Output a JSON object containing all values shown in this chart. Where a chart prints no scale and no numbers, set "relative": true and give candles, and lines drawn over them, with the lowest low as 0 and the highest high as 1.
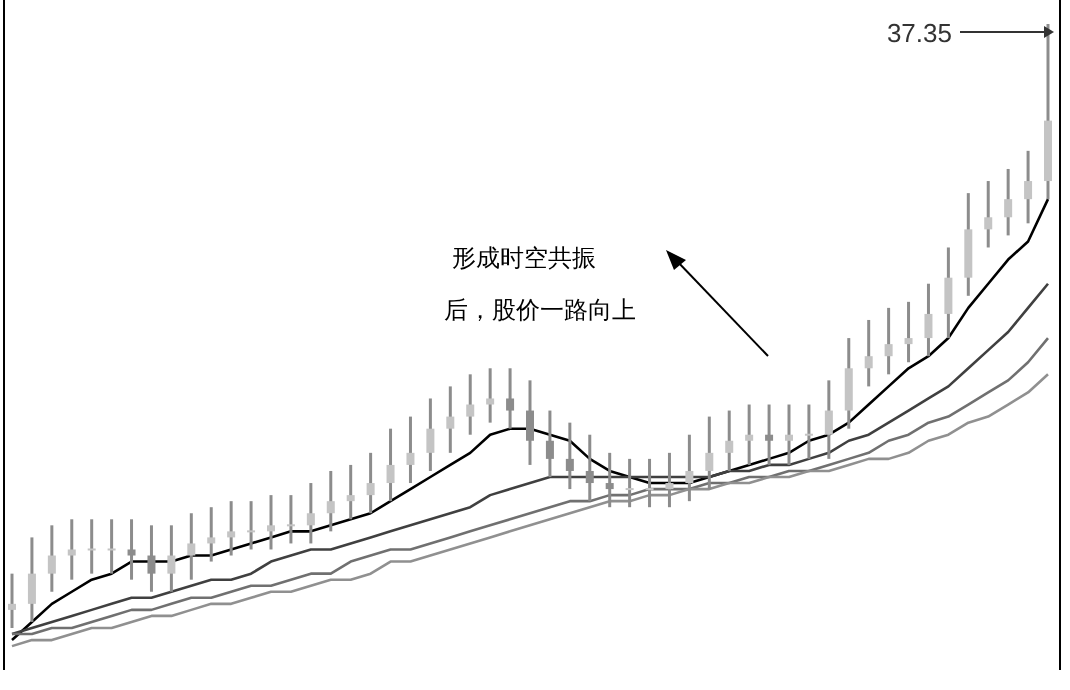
{
  "chart_data": {
    "type": "candlestick",
    "relative": true,
    "categories": [
      null,
      null,
      null,
      null,
      null,
      null,
      null,
      null,
      null,
      null,
      null,
      null,
      null,
      null,
      null,
      null,
      null,
      null,
      null,
      null,
      null,
      null,
      null,
      null,
      null,
      null,
      null,
      null,
      null,
      null,
      null,
      null,
      null,
      null,
      null,
      null,
      null,
      null,
      null,
      null,
      null,
      null,
      null,
      null,
      null,
      null,
      null,
      null,
      null,
      null,
      null,
      null,
      null
    ],
    "color": "#8c8c8c",
    "colors": [
      "#c4c4c4",
      "#c4c4c4",
      "#c4c4c4",
      "#c4c4c4",
      "#c4c4c4",
      "#c4c4c4",
      "#8c8c8c",
      "#8c8c8c",
      "#c4c4c4",
      "#c4c4c4",
      "#c4c4c4",
      "#c4c4c4",
      "#c4c4c4",
      "#c4c4c4",
      "#c4c4c4",
      "#c4c4c4",
      "#c4c4c4",
      "#c4c4c4",
      "#c4c4c4",
      "#c4c4c4",
      "#c4c4c4",
      "#c4c4c4",
      "#c4c4c4",
      "#c4c4c4",
      "#c4c4c4",
      "#8c8c8c",
      "#8c8c8c",
      "#8c8c8c",
      "#8c8c8c",
      "#8c8c8c",
      "#8c8c8c",
      "#c4c4c4",
      "#c4c4c4",
      "#c4c4c4",
      "#c4c4c4",
      "#c4c4c4",
      "#c4c4c4",
      "#c4c4c4",
      "#8c8c8c",
      "#c4c4c4",
      "#c4c4c4",
      "#c4c4c4",
      "#c4c4c4",
      "#c4c4c4",
      "#c4c4c4",
      "#c4c4c4",
      "#c4c4c4",
      "#c4c4c4",
      "#c4c4c4",
      "#c4c4c4",
      "#c4c4c4",
      "#c4c4c4",
      "#c4c4c4"
    ],
    "ohlc": [
      [
        0.03,
        0.09,
        0,
        0.04
      ],
      [
        0.04,
        0.15,
        0.01,
        0.09
      ],
      [
        0.09,
        0.17,
        0.06,
        0.12
      ],
      [
        0.12,
        0.18,
        0.08,
        0.13
      ],
      [
        0.13,
        0.18,
        0.09,
        0.13
      ],
      [
        0.13,
        0.18,
        0.09,
        0.13
      ],
      [
        0.13,
        0.18,
        0.08,
        0.12
      ],
      [
        0.12,
        0.17,
        0.06,
        0.09
      ],
      [
        0.09,
        0.17,
        0.06,
        0.12
      ],
      [
        0.12,
        0.19,
        0.08,
        0.14
      ],
      [
        0.14,
        0.2,
        0.11,
        0.15
      ],
      [
        0.15,
        0.21,
        0.12,
        0.16
      ],
      [
        0.16,
        0.21,
        0.13,
        0.16
      ],
      [
        0.16,
        0.22,
        0.13,
        0.17
      ],
      [
        0.17,
        0.22,
        0.14,
        0.17
      ],
      [
        0.17,
        0.24,
        0.14,
        0.19
      ],
      [
        0.19,
        0.26,
        0.16,
        0.21
      ],
      [
        0.21,
        0.27,
        0.18,
        0.22
      ],
      [
        0.22,
        0.29,
        0.19,
        0.24
      ],
      [
        0.24,
        0.33,
        0.21,
        0.27
      ],
      [
        0.27,
        0.35,
        0.24,
        0.29
      ],
      [
        0.29,
        0.38,
        0.26,
        0.33
      ],
      [
        0.33,
        0.4,
        0.29,
        0.35
      ],
      [
        0.35,
        0.42,
        0.32,
        0.37
      ],
      [
        0.37,
        0.43,
        0.34,
        0.38
      ],
      [
        0.38,
        0.43,
        0.33,
        0.36
      ],
      [
        0.36,
        0.41,
        0.27,
        0.31
      ],
      [
        0.31,
        0.36,
        0.25,
        0.28
      ],
      [
        0.28,
        0.34,
        0.23,
        0.26
      ],
      [
        0.26,
        0.32,
        0.21,
        0.24
      ],
      [
        0.24,
        0.29,
        0.2,
        0.23
      ],
      [
        0.23,
        0.28,
        0.2,
        0.23
      ],
      [
        0.23,
        0.28,
        0.2,
        0.23
      ],
      [
        0.23,
        0.29,
        0.2,
        0.24
      ],
      [
        0.24,
        0.32,
        0.21,
        0.26
      ],
      [
        0.26,
        0.35,
        0.23,
        0.29
      ],
      [
        0.29,
        0.36,
        0.26,
        0.31
      ],
      [
        0.31,
        0.37,
        0.27,
        0.32
      ],
      [
        0.32,
        0.37,
        0.27,
        0.31
      ],
      [
        0.31,
        0.37,
        0.27,
        0.32
      ],
      [
        0.32,
        0.37,
        0.28,
        0.32
      ],
      [
        0.32,
        0.41,
        0.28,
        0.36
      ],
      [
        0.36,
        0.48,
        0.33,
        0.43
      ],
      [
        0.43,
        0.51,
        0.4,
        0.45
      ],
      [
        0.45,
        0.53,
        0.42,
        0.47
      ],
      [
        0.47,
        0.54,
        0.44,
        0.48
      ],
      [
        0.48,
        0.57,
        0.45,
        0.52
      ],
      [
        0.52,
        0.63,
        0.48,
        0.58
      ],
      [
        0.58,
        0.72,
        0.55,
        0.66
      ],
      [
        0.66,
        0.74,
        0.63,
        0.68
      ],
      [
        0.68,
        0.76,
        0.65,
        0.71
      ],
      [
        0.71,
        0.79,
        0.67,
        0.74
      ],
      [
        0.74,
        1.0,
        0.71,
        0.84
      ]
    ],
    "series": [
      {
        "type": "line",
        "color": "#000000",
        "values": [
          -0.02,
          0.01,
          0.04,
          0.06,
          0.08,
          0.09,
          0.11,
          0.11,
          0.11,
          0.12,
          0.12,
          0.13,
          0.14,
          0.15,
          0.16,
          0.16,
          0.17,
          0.18,
          0.19,
          0.21,
          0.23,
          0.25,
          0.27,
          0.29,
          0.32,
          0.33,
          0.33,
          0.32,
          0.31,
          0.28,
          0.26,
          0.25,
          0.24,
          0.24,
          0.24,
          0.25,
          0.26,
          0.27,
          0.28,
          0.29,
          0.31,
          0.32,
          0.34,
          0.37,
          0.4,
          0.43,
          0.45,
          0.48,
          0.53,
          0.57,
          0.61,
          0.64,
          0.71
        ]
      },
      {
        "type": "line",
        "color": "#404040",
        "values": [
          -0.01,
          0,
          0.01,
          0.02,
          0.03,
          0.04,
          0.05,
          0.05,
          0.06,
          0.07,
          0.08,
          0.08,
          0.09,
          0.11,
          0.12,
          0.13,
          0.13,
          0.14,
          0.15,
          0.16,
          0.17,
          0.18,
          0.19,
          0.2,
          0.22,
          0.23,
          0.24,
          0.25,
          0.25,
          0.25,
          0.25,
          0.25,
          0.25,
          0.25,
          0.25,
          0.25,
          0.26,
          0.26,
          0.27,
          0.27,
          0.28,
          0.29,
          0.31,
          0.32,
          0.34,
          0.36,
          0.38,
          0.4,
          0.43,
          0.46,
          0.49,
          0.53,
          0.57
        ]
      },
      {
        "type": "line",
        "color": "#707070",
        "values": [
          -0.01,
          -0.01,
          0,
          0,
          0.01,
          0.02,
          0.03,
          0.03,
          0.04,
          0.05,
          0.05,
          0.06,
          0.07,
          0.07,
          0.08,
          0.09,
          0.09,
          0.11,
          0.12,
          0.13,
          0.13,
          0.14,
          0.15,
          0.16,
          0.17,
          0.18,
          0.19,
          0.2,
          0.21,
          0.21,
          0.22,
          0.22,
          0.23,
          0.23,
          0.23,
          0.24,
          0.24,
          0.25,
          0.25,
          0.26,
          0.26,
          0.27,
          0.28,
          0.29,
          0.31,
          0.32,
          0.34,
          0.35,
          0.37,
          0.39,
          0.41,
          0.44,
          0.48
        ]
      },
      {
        "type": "line",
        "color": "#909090",
        "values": [
          -0.03,
          -0.02,
          -0.02,
          -0.01,
          0,
          0,
          0.01,
          0.02,
          0.02,
          0.03,
          0.04,
          0.04,
          0.05,
          0.06,
          0.06,
          0.07,
          0.08,
          0.08,
          0.09,
          0.11,
          0.11,
          0.12,
          0.13,
          0.14,
          0.15,
          0.16,
          0.17,
          0.18,
          0.19,
          0.2,
          0.21,
          0.21,
          0.22,
          0.22,
          0.23,
          0.23,
          0.24,
          0.24,
          0.25,
          0.25,
          0.26,
          0.26,
          0.27,
          0.28,
          0.28,
          0.29,
          0.31,
          0.32,
          0.34,
          0.35,
          0.37,
          0.39,
          0.42
        ]
      }
    ],
    "annotations": [
      "37.35",
      "形成时空共振后，股价一路向上"
    ]
  }
}
